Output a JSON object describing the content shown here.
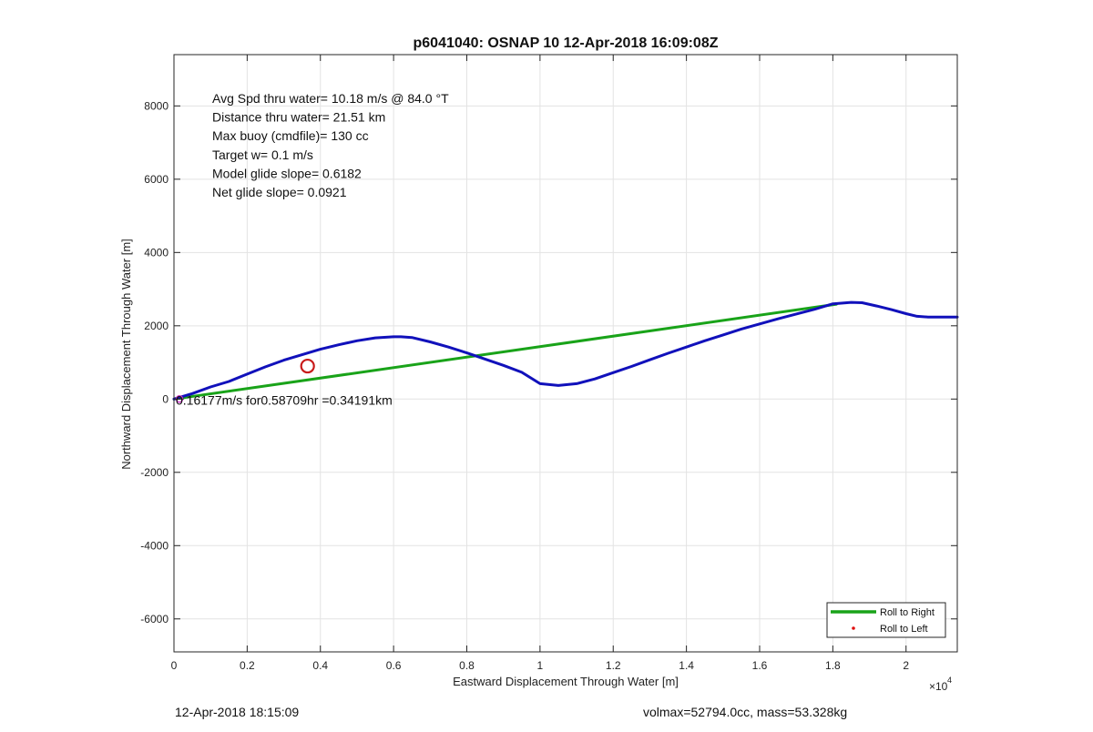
{
  "chart_data": {
    "type": "line",
    "title": "p6041040: OSNAP 10 12-Apr-2018 16:09:08Z",
    "xlabel": "Eastward Displacement Through Water [m]",
    "ylabel": "Northward Displacement Through Water [m]",
    "x_multiplier_label": "×10",
    "x_multiplier_exponent": "4",
    "xlim": [
      0,
      21400
    ],
    "ylim": [
      -6900,
      9400
    ],
    "x_ticks": [
      0,
      2000,
      4000,
      6000,
      8000,
      10000,
      12000,
      14000,
      16000,
      18000,
      20000
    ],
    "x_tick_labels": [
      "0",
      "0.2",
      "0.4",
      "0.6",
      "0.8",
      "1",
      "1.2",
      "1.4",
      "1.6",
      "1.8",
      "2"
    ],
    "y_ticks": [
      -6000,
      -4000,
      -2000,
      0,
      2000,
      4000,
      6000,
      8000
    ],
    "y_tick_labels": [
      "-6000",
      "-4000",
      "-2000",
      "0",
      "2000",
      "4000",
      "6000",
      "8000"
    ],
    "grid": true,
    "annotations": [
      "Avg Spd thru water= 10.18 m/s @  84.0 °T",
      "Distance thru water= 21.51 km",
      "Max buoy (cmdfile)= 130 cc",
      "Target w= 0.1 m/s",
      "Model glide slope= 0.6182",
      "Net glide slope= 0.0921"
    ],
    "current_label": "0.16177m/s for0.58709hr =0.34191km",
    "series": [
      {
        "name": "Roll to Right",
        "color": "#19a319",
        "style": "line",
        "x": [
          0,
          18100
        ],
        "y": [
          0,
          2590
        ]
      },
      {
        "name": "Roll to Left",
        "color": "#e01010",
        "style": "dot",
        "x": [],
        "y": []
      },
      {
        "color": "#1111bb",
        "style": "line",
        "x": [
          0,
          500,
          1000,
          1500,
          2000,
          2500,
          3000,
          3500,
          4000,
          4500,
          5000,
          5500,
          6000,
          6200,
          6500,
          7000,
          7500,
          8000,
          8500,
          9000,
          9500,
          10000,
          10500,
          11000,
          11500,
          12000,
          12500,
          13000,
          13500,
          14000,
          14500,
          15000,
          15500,
          16000,
          16500,
          17000,
          17500,
          18000,
          18500,
          18800,
          19200,
          19600,
          20000,
          20300,
          20600,
          21000,
          21400
        ],
        "y": [
          0,
          150,
          330,
          480,
          680,
          880,
          1060,
          1210,
          1360,
          1480,
          1590,
          1670,
          1700,
          1700,
          1680,
          1560,
          1420,
          1260,
          1090,
          920,
          730,
          420,
          370,
          420,
          550,
          720,
          890,
          1070,
          1250,
          1420,
          1590,
          1750,
          1910,
          2050,
          2190,
          2320,
          2450,
          2600,
          2640,
          2630,
          2540,
          2440,
          2330,
          2260,
          2240,
          2240,
          2240
        ]
      }
    ],
    "markers": [
      {
        "kind": "circle",
        "x": 3650,
        "y": 900,
        "color": "#c81a1a"
      },
      {
        "kind": "start",
        "x": 150,
        "y": 0,
        "color": "#cc33cc"
      }
    ],
    "legend_position": "bottom-right"
  },
  "footer": {
    "left": "12-Apr-2018 18:15:09",
    "right": "volmax=52794.0cc, mass=53.328kg"
  }
}
